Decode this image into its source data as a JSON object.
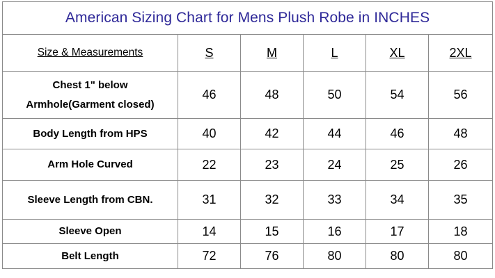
{
  "title": "American Sizing Chart for Mens Plush Robe in INCHES",
  "header": {
    "label": "Size & Measurements",
    "sizes": [
      "S",
      "M",
      "L",
      "XL",
      "2XL"
    ]
  },
  "rows": [
    {
      "label_line1": "Chest 1\" below",
      "label_line2": "Armhole(Garment closed)",
      "values": [
        "46",
        "48",
        "50",
        "54",
        "56"
      ]
    },
    {
      "label": "Body Length from  HPS",
      "values": [
        "40",
        "42",
        "44",
        "46",
        "48"
      ]
    },
    {
      "label": "Arm Hole Curved",
      "values": [
        "22",
        "23",
        "24",
        "25",
        "26"
      ]
    },
    {
      "label": "Sleeve Length from CBN.",
      "values": [
        "31",
        "32",
        "33",
        "34",
        "35"
      ]
    },
    {
      "label": "Sleeve Open",
      "values": [
        "14",
        "15",
        "16",
        "17",
        "18"
      ]
    },
    {
      "label": "Belt Length",
      "values": [
        "72",
        "76",
        "80",
        "80",
        "80"
      ]
    }
  ],
  "colors": {
    "title": "#2e2898",
    "border": "#8a8a8a"
  }
}
